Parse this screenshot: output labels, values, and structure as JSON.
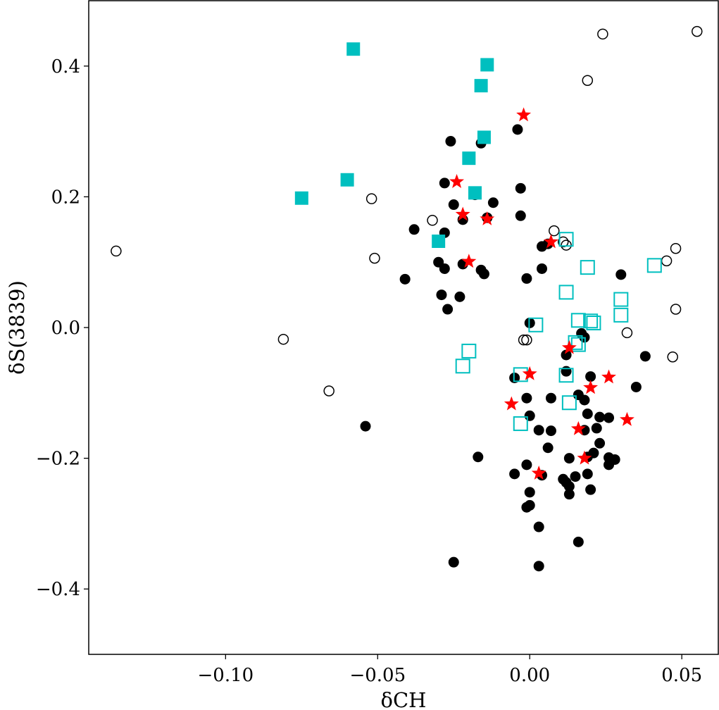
{
  "chart_data": {
    "type": "scatter",
    "title": "",
    "xlabel": "δCH",
    "ylabel": "δS(3839)",
    "xlim": [
      -0.145,
      0.062
    ],
    "ylim": [
      -0.5,
      0.5
    ],
    "xticks": [
      -0.1,
      -0.05,
      0.0,
      0.05
    ],
    "xtick_labels": [
      "−0.10",
      "−0.05",
      "0.00",
      "0.05"
    ],
    "yticks": [
      0.4,
      0.2,
      0.0,
      -0.2,
      -0.4
    ],
    "ytick_labels": [
      "0.4",
      "0.2",
      "0.0",
      "−0.2",
      "−0.4"
    ],
    "grid": false,
    "colors": {
      "black": "#000000",
      "cyan": "#00BFBF",
      "red": "#FF0000"
    },
    "series": [
      {
        "name": "filled circles",
        "marker": "circle",
        "filled": true,
        "color": "#000000",
        "points": [
          [
            -0.026,
            0.285
          ],
          [
            -0.016,
            0.282
          ],
          [
            -0.004,
            0.303
          ],
          [
            -0.003,
            0.213
          ],
          [
            -0.003,
            0.171
          ],
          [
            -0.028,
            0.221
          ],
          [
            -0.025,
            0.188
          ],
          [
            -0.018,
            0.203
          ],
          [
            -0.012,
            0.191
          ],
          [
            -0.022,
            0.165
          ],
          [
            -0.014,
            0.168
          ],
          [
            -0.038,
            0.15
          ],
          [
            -0.028,
            0.145
          ],
          [
            -0.03,
            0.13
          ],
          [
            -0.03,
            0.1
          ],
          [
            -0.022,
            0.097
          ],
          [
            -0.028,
            0.09
          ],
          [
            -0.016,
            0.088
          ],
          [
            -0.015,
            0.082
          ],
          [
            -0.041,
            0.074
          ],
          [
            -0.029,
            0.05
          ],
          [
            -0.023,
            0.047
          ],
          [
            -0.027,
            0.028
          ],
          [
            -0.001,
            0.075
          ],
          [
            0.004,
            0.124
          ],
          [
            0.006,
            0.128
          ],
          [
            0.004,
            0.09
          ],
          [
            0.03,
            0.081
          ],
          [
            0.0,
            0.007
          ],
          [
            0.017,
            -0.009
          ],
          [
            0.018,
            -0.015
          ],
          [
            0.012,
            -0.042
          ],
          [
            0.038,
            -0.044
          ],
          [
            -0.005,
            -0.077
          ],
          [
            0.012,
            -0.067
          ],
          [
            0.02,
            -0.075
          ],
          [
            0.035,
            -0.091
          ],
          [
            0.016,
            -0.103
          ],
          [
            0.018,
            -0.111
          ],
          [
            -0.001,
            -0.108
          ],
          [
            0.007,
            -0.108
          ],
          [
            0.019,
            -0.132
          ],
          [
            0.023,
            -0.137
          ],
          [
            0.026,
            -0.138
          ],
          [
            0.0,
            -0.135
          ],
          [
            0.003,
            -0.157
          ],
          [
            0.007,
            -0.158
          ],
          [
            0.018,
            -0.157
          ],
          [
            0.022,
            -0.154
          ],
          [
            0.023,
            -0.177
          ],
          [
            0.006,
            -0.184
          ],
          [
            0.021,
            -0.192
          ],
          [
            -0.017,
            -0.198
          ],
          [
            -0.001,
            -0.21
          ],
          [
            0.013,
            -0.2
          ],
          [
            0.019,
            -0.198
          ],
          [
            0.026,
            -0.199
          ],
          [
            0.028,
            -0.202
          ],
          [
            -0.005,
            -0.224
          ],
          [
            0.004,
            -0.226
          ],
          [
            0.011,
            -0.232
          ],
          [
            0.015,
            -0.228
          ],
          [
            0.019,
            -0.224
          ],
          [
            0.026,
            -0.21
          ],
          [
            0.012,
            -0.237
          ],
          [
            0.013,
            -0.243
          ],
          [
            0.02,
            -0.248
          ],
          [
            0.0,
            -0.252
          ],
          [
            0.013,
            -0.255
          ],
          [
            0.0,
            -0.272
          ],
          [
            -0.001,
            -0.275
          ],
          [
            0.003,
            -0.305
          ],
          [
            0.016,
            -0.328
          ],
          [
            -0.025,
            -0.359
          ],
          [
            0.003,
            -0.365
          ],
          [
            -0.054,
            -0.151
          ]
        ]
      },
      {
        "name": "open circles",
        "marker": "circle",
        "filled": false,
        "color": "#000000",
        "points": [
          [
            -0.136,
            0.117
          ],
          [
            -0.081,
            -0.018
          ],
          [
            -0.066,
            -0.097
          ],
          [
            -0.052,
            0.197
          ],
          [
            -0.051,
            0.106
          ],
          [
            -0.032,
            0.164
          ],
          [
            0.019,
            0.378
          ],
          [
            0.024,
            0.449
          ],
          [
            0.055,
            0.453
          ],
          [
            0.008,
            0.148
          ],
          [
            0.011,
            0.131
          ],
          [
            0.012,
            0.126
          ],
          [
            0.045,
            0.102
          ],
          [
            0.048,
            0.121
          ],
          [
            0.048,
            0.028
          ],
          [
            0.032,
            -0.008
          ],
          [
            -0.002,
            -0.019
          ],
          [
            -0.001,
            -0.019
          ],
          [
            0.047,
            -0.045
          ]
        ]
      },
      {
        "name": "filled squares",
        "marker": "square",
        "filled": true,
        "color": "#00BFBF",
        "points": [
          [
            -0.058,
            0.426
          ],
          [
            -0.014,
            0.402
          ],
          [
            -0.016,
            0.37
          ],
          [
            -0.015,
            0.291
          ],
          [
            -0.02,
            0.259
          ],
          [
            -0.06,
            0.226
          ],
          [
            -0.075,
            0.198
          ],
          [
            -0.018,
            0.206
          ],
          [
            -0.03,
            0.132
          ]
        ]
      },
      {
        "name": "open squares",
        "marker": "square",
        "filled": false,
        "color": "#00BFBF",
        "points": [
          [
            0.012,
            0.135
          ],
          [
            0.019,
            0.092
          ],
          [
            0.041,
            0.095
          ],
          [
            0.012,
            0.054
          ],
          [
            0.03,
            0.043
          ],
          [
            0.03,
            0.019
          ],
          [
            0.002,
            0.004
          ],
          [
            0.016,
            0.011
          ],
          [
            0.02,
            0.01
          ],
          [
            0.021,
            0.007
          ],
          [
            0.015,
            -0.023
          ],
          [
            0.016,
            -0.026
          ],
          [
            -0.02,
            -0.036
          ],
          [
            -0.022,
            -0.059
          ],
          [
            -0.003,
            -0.072
          ],
          [
            0.012,
            -0.073
          ],
          [
            0.013,
            -0.115
          ],
          [
            -0.003,
            -0.147
          ]
        ]
      },
      {
        "name": "stars",
        "marker": "star",
        "filled": true,
        "color": "#FF0000",
        "points": [
          [
            -0.002,
            0.325
          ],
          [
            -0.024,
            0.223
          ],
          [
            -0.022,
            0.173
          ],
          [
            -0.014,
            0.166
          ],
          [
            0.007,
            0.131
          ],
          [
            -0.02,
            0.101
          ],
          [
            0.013,
            -0.031
          ],
          [
            0.0,
            -0.071
          ],
          [
            0.026,
            -0.076
          ],
          [
            0.02,
            -0.092
          ],
          [
            -0.006,
            -0.117
          ],
          [
            0.016,
            -0.155
          ],
          [
            0.032,
            -0.141
          ],
          [
            0.018,
            -0.2
          ],
          [
            0.003,
            -0.223
          ]
        ]
      }
    ]
  }
}
